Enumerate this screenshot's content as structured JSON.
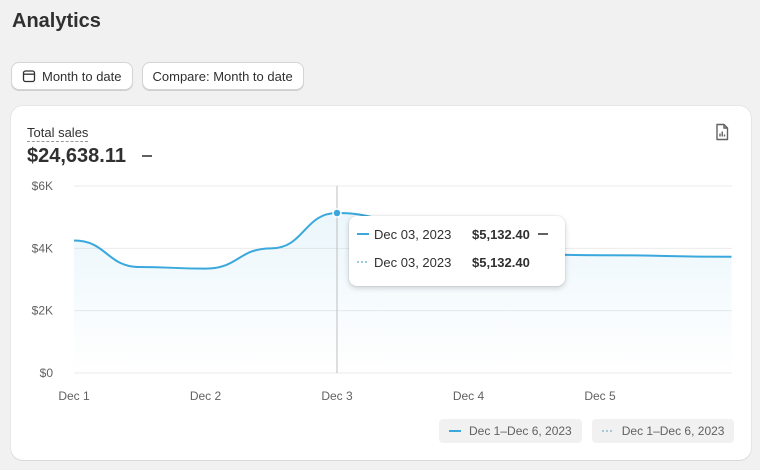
{
  "page": {
    "title": "Analytics"
  },
  "toolbar": {
    "date_range_label": "Month to date",
    "date_range_icon": "calendar-icon",
    "compare_label": "Compare: Month to date"
  },
  "card": {
    "metric_label": "Total sales",
    "metric_value": "$24,638.11",
    "export_icon": "export-report-icon"
  },
  "tooltip": {
    "primary": {
      "date": "Dec 03, 2023",
      "value": "$5,132.40"
    },
    "comparison": {
      "date": "Dec 03, 2023",
      "value": "$5,132.40"
    }
  },
  "legend": {
    "primary": "Dec 1–Dec 6, 2023",
    "comparison": "Dec 1–Dec 6, 2023"
  },
  "colors": {
    "primary_line": "#3aa8dc",
    "comparison_line": "#a8c8d8"
  },
  "chart_data": {
    "type": "line",
    "x": [
      "Dec 1",
      "Dec 1.5",
      "Dec 2",
      "Dec 2.5",
      "Dec 3",
      "Dec 3.5",
      "Dec 4",
      "Dec 4.5",
      "Dec 5",
      "Dec 6"
    ],
    "tick_labels_x": [
      "Dec 1",
      "Dec 2",
      "Dec 3",
      "Dec 4",
      "Dec 5"
    ],
    "tick_labels_y": [
      "$0",
      "$2K",
      "$4K",
      "$6K"
    ],
    "series": [
      {
        "values": [
          4250,
          3400,
          3350,
          4000,
          5132.4,
          4900,
          3950,
          3800,
          3780,
          3730
        ]
      }
    ],
    "ylim": [
      0,
      6000
    ],
    "highlight_index": 4,
    "grid": true,
    "legend_position": "bottom-right"
  }
}
